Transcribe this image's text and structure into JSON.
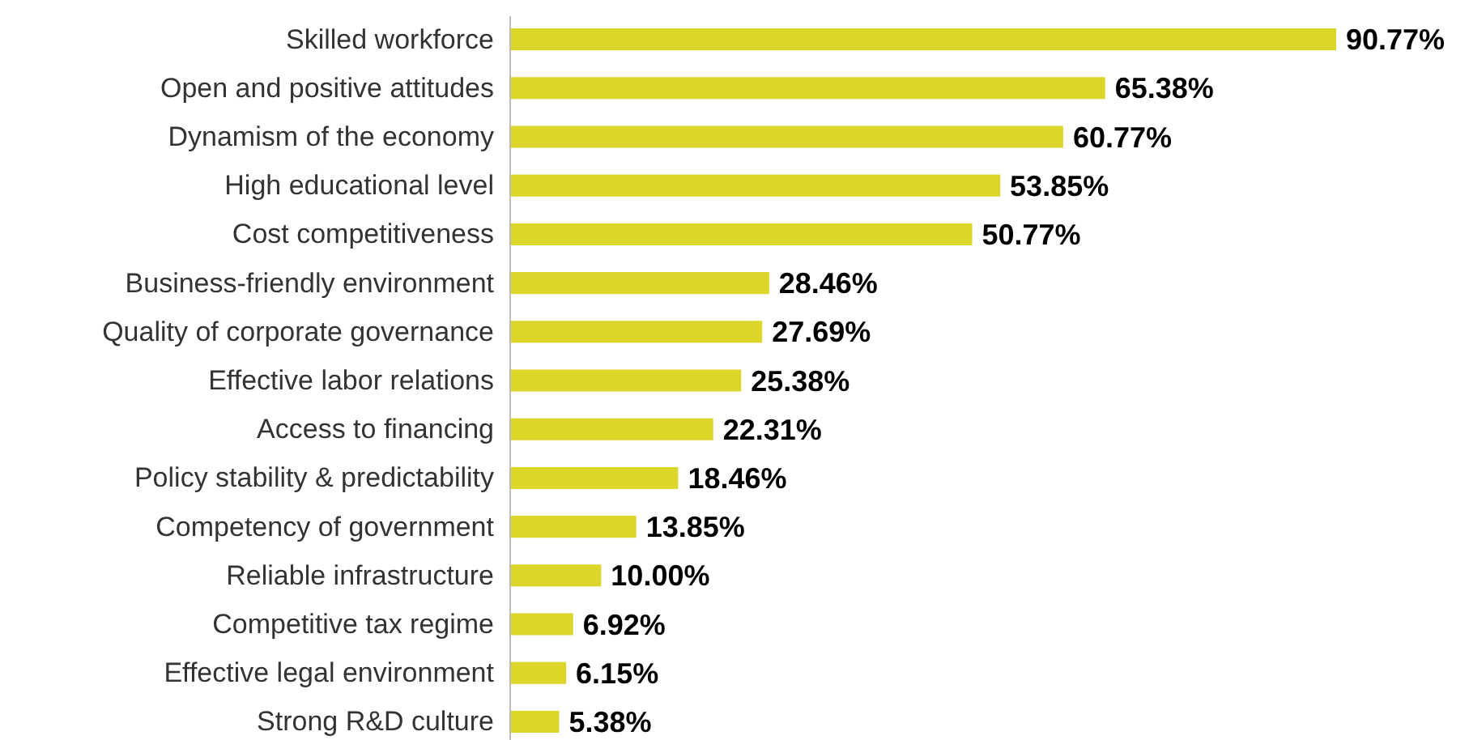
{
  "chart_data": {
    "type": "bar",
    "orientation": "horizontal",
    "categories": [
      "Skilled workforce",
      "Open and positive attitudes",
      "Dynamism of the economy",
      "High educational level",
      "Cost competitiveness",
      "Business-friendly environment",
      "Quality of corporate governance",
      "Effective labor relations",
      "Access to financing",
      "Policy stability & predictability",
      "Competency of government",
      "Reliable infrastructure",
      "Competitive tax regime",
      "Effective legal environment",
      "Strong R&D culture"
    ],
    "values": [
      90.77,
      65.38,
      60.77,
      53.85,
      50.77,
      28.46,
      27.69,
      25.38,
      22.31,
      18.46,
      13.85,
      10.0,
      6.92,
      6.15,
      5.38
    ],
    "value_labels": [
      "90.77%",
      "65.38%",
      "60.77%",
      "53.85%",
      "50.77%",
      "28.46%",
      "27.69%",
      "25.38%",
      "22.31%",
      "18.46%",
      "13.85%",
      "10.00%",
      "6.92%",
      "6.15%",
      "5.38%"
    ],
    "color": "#dcd52a"
  }
}
